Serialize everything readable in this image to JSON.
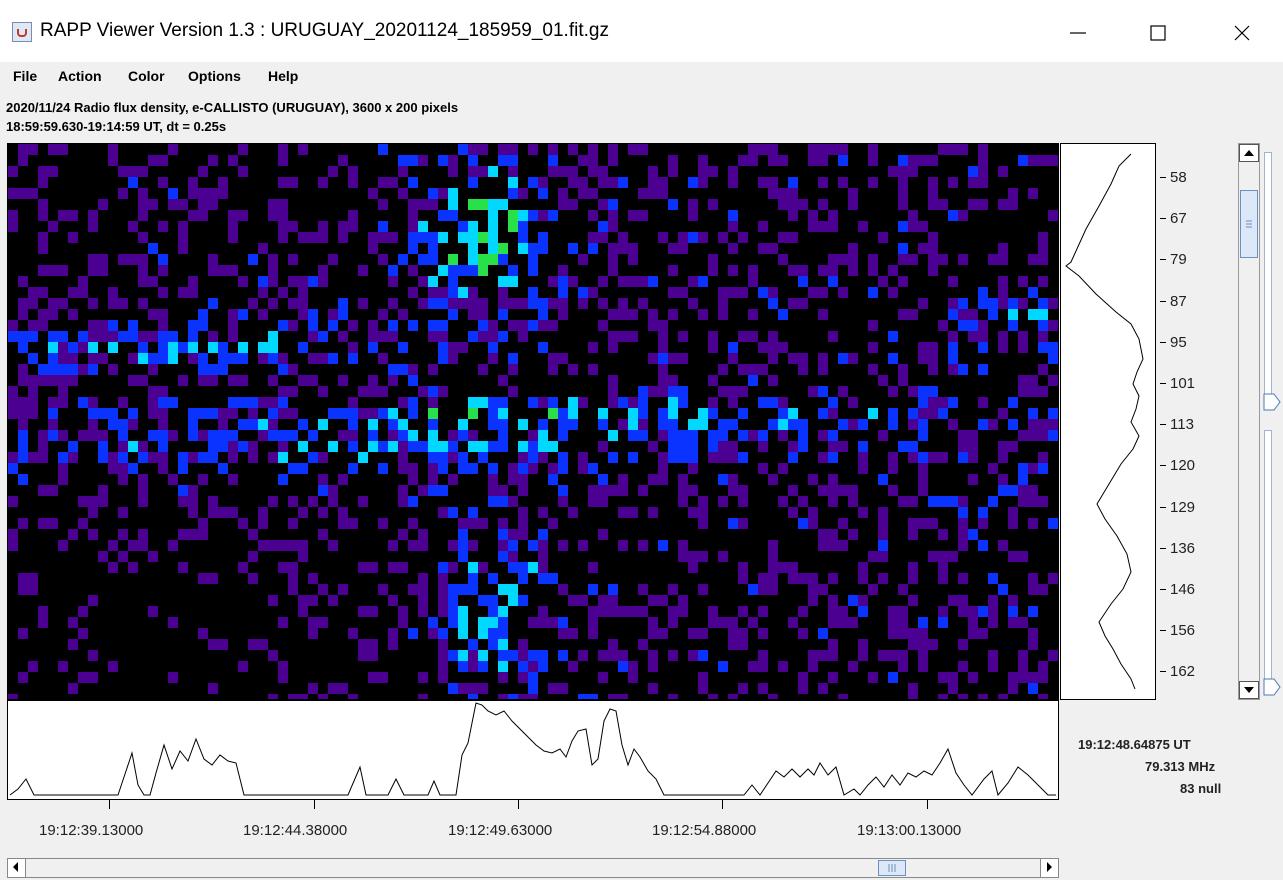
{
  "window": {
    "title": "RAPP Viewer Version 1.3 : URUGUAY_20201124_185959_01.fit.gz",
    "minimize_icon": "minimize-icon",
    "maximize_icon": "maximize-icon",
    "close_icon": "close-icon"
  },
  "menu": {
    "items": [
      "File",
      "Action",
      "Color",
      "Options",
      "Help"
    ]
  },
  "header": {
    "line1": "2020/11/24  Radio flux density, e-CALLISTO (URUGUAY),  3600 x 200 pixels",
    "line2": "18:59:59.630-19:14:59 UT,  dt = 0.25s"
  },
  "frequency_axis": {
    "labels": [
      "58",
      "67",
      "79",
      "87",
      "95",
      "101",
      "113",
      "120",
      "129",
      "136",
      "146",
      "156",
      "162"
    ]
  },
  "time_axis": {
    "labels": [
      "19:12:39.13000",
      "19:12:44.38000",
      "19:12:49.63000",
      "19:12:54.88000",
      "19:13:00.13000"
    ]
  },
  "cursor_info": {
    "time": "19:12:48.64875 UT",
    "frequency": "79.313 MHz",
    "value": "83 null"
  },
  "colormap": [
    "#000000",
    "#4b0092",
    "#0a33ff",
    "#00d8ff",
    "#28e04a",
    "#fff200",
    "#ff4a0a",
    "#ffffff"
  ],
  "colors": {
    "window_bg": "#f0f0f0",
    "titlebar_bg": "#ffffff",
    "plot_line": "#000000"
  }
}
